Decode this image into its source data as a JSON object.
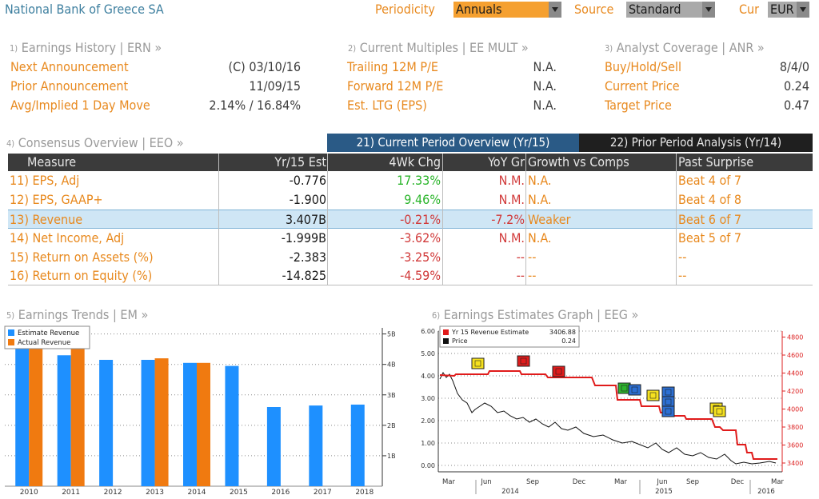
{
  "header": {
    "company": "National Bank of Greece SA",
    "periodicity_label": "Periodicity",
    "periodicity_value": "Annuals",
    "source_label": "Source",
    "source_value": "Standard",
    "cur_label": "Cur",
    "cur_value": "EUR"
  },
  "earnings_history": {
    "num": "1)",
    "title": "Earnings History | ERN »",
    "rows": [
      {
        "label": "Next Announcement",
        "value": "(C)  03/10/16"
      },
      {
        "label": "Prior Announcement",
        "value": "11/09/15"
      },
      {
        "label": "Avg/Implied 1 Day Move",
        "value": "2.14% / 16.84%"
      }
    ]
  },
  "current_multiples": {
    "num": "2)",
    "title": "Current Multiples | EE MULT »",
    "rows": [
      {
        "label": "Trailing 12M P/E",
        "value": "N.A."
      },
      {
        "label": "Forward 12M P/E",
        "value": "N.A."
      },
      {
        "label": "Est. LTG (EPS)",
        "value": "N.A."
      }
    ]
  },
  "analyst_coverage": {
    "num": "3)",
    "title": "Analyst Coverage | ANR »",
    "rows": [
      {
        "label": "Buy/Hold/Sell",
        "value": "8/4/0"
      },
      {
        "label": "Current Price",
        "value": "0.24"
      },
      {
        "label": "Target Price",
        "value": "0.47"
      }
    ]
  },
  "consensus": {
    "num": "4)",
    "title": "Consensus Overview | EEO »",
    "tab_current": "21) Current Period Overview (Yr/15)",
    "tab_prior": "22) Prior Period Analysis (Yr/14)",
    "headers": [
      "Measure",
      "Yr/15 Est",
      "4Wk Chg",
      "YoY Gr",
      "Growth vs Comps",
      "Past Surprise"
    ],
    "rows": [
      {
        "measure": "11) EPS, Adj",
        "est": "-0.776",
        "chg": "17.33%",
        "chg_color": "green",
        "yoy": "N.M.",
        "yoy_color": "red",
        "growth": "N.A.",
        "surprise": "Beat 4 of 7"
      },
      {
        "measure": "12) EPS, GAAP+",
        "est": "-1.900",
        "chg": "9.46%",
        "chg_color": "green",
        "yoy": "N.M.",
        "yoy_color": "red",
        "growth": "N.A.",
        "surprise": "Beat 4 of 8"
      },
      {
        "measure": "13) Revenue",
        "est": "3.407B",
        "chg": "-0.21%",
        "chg_color": "red",
        "yoy": "-7.2%",
        "yoy_color": "red",
        "growth": "Weaker",
        "surprise": "Beat 6 of 7"
      },
      {
        "measure": "14) Net Income, Adj",
        "est": "-1.999B",
        "chg": "-3.62%",
        "chg_color": "red",
        "yoy": "N.M.",
        "yoy_color": "red",
        "growth": "N.A.",
        "surprise": "Beat 5 of 7"
      },
      {
        "measure": "15) Return on Assets (%)",
        "est": "-2.383",
        "chg": "-3.25%",
        "chg_color": "red",
        "yoy": "--",
        "yoy_color": "red",
        "growth": "--",
        "surprise": "--"
      },
      {
        "measure": "16) Return on Equity (%)",
        "est": "-14.825",
        "chg": "-4.59%",
        "chg_color": "red",
        "yoy": "--",
        "yoy_color": "red",
        "growth": "--",
        "surprise": "--"
      }
    ]
  },
  "earnings_trends": {
    "num": "5)",
    "title": "Earnings Trends | EM »"
  },
  "earnings_graph": {
    "num": "6)",
    "title": "Earnings Estimates Graph | EEG »"
  },
  "chart_data": [
    {
      "type": "bar",
      "categories": [
        "2010",
        "2011",
        "2012",
        "2013",
        "2014",
        "2015",
        "2016",
        "2017",
        "2018"
      ],
      "series": [
        {
          "name": "Estimate Revenue",
          "color": "#1e90ff",
          "values": [
            4.6,
            4.3,
            4.15,
            4.15,
            4.05,
            3.95,
            2.6,
            2.65,
            2.68
          ]
        },
        {
          "name": "Actual Revenue",
          "color": "#f07a10",
          "values": [
            4.7,
            4.55,
            null,
            4.2,
            4.05,
            null,
            null,
            null,
            null
          ]
        }
      ],
      "yticks": [
        "1B",
        "2B",
        "3B",
        "4B",
        "5B"
      ],
      "ylim": [
        0,
        5.2
      ],
      "grid": true,
      "legend": "top-left"
    },
    {
      "type": "line",
      "x_labels": [
        "Mar",
        "Jun",
        "Sep",
        "Dec",
        "Mar",
        "Jun",
        "Sep",
        "Dec",
        "Mar"
      ],
      "year_labels": [
        "2014",
        "2015",
        "2016"
      ],
      "left_ticks": [
        "0.00",
        "1.00",
        "2.00",
        "3.00",
        "4.00",
        "5.00",
        "6.00"
      ],
      "right_ticks": [
        "3400",
        "3600",
        "3800",
        "4000",
        "4200",
        "4400",
        "4600",
        "4800"
      ],
      "series": [
        {
          "name": "Yr 15 Revenue Estimate",
          "last_value": "3406.88",
          "color": "#e01b1b",
          "axis": "right"
        },
        {
          "name": "Price",
          "last_value": "0.24",
          "color": "#111111",
          "axis": "left"
        }
      ],
      "legend": "top-left",
      "grid": true
    }
  ]
}
